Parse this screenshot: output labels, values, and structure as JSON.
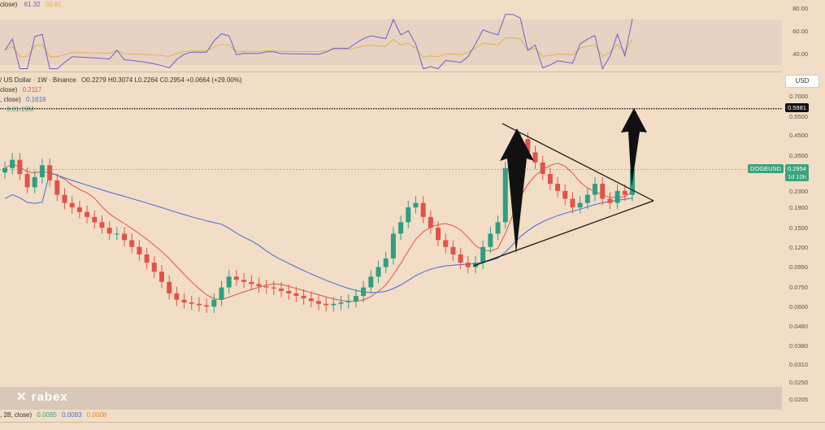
{
  "rsi": {
    "legend_prefix": "close)",
    "value1": "61.32",
    "value2": "50.61",
    "axis": [
      "80.00",
      "60.00",
      "40.00"
    ],
    "color_line": "#6b5fc7",
    "color_ma": "#e3b341"
  },
  "main": {
    "title": "/ US Dollar · 1W · Binance",
    "ohlc": "O0.2279  H0.3074  L0.2264  C0.2954  +0.0664 (+29.00%)",
    "ma1_prefix": "close)",
    "ma1_value": "0.2117",
    "ma2_prefix": ", close)",
    "ma2_value": "0.1619",
    "ma3_value": "3.01.19M",
    "currency_button": "USD",
    "price_axis": [
      "0.7000",
      "0.5981",
      "0.5500",
      "0.4500",
      "0.3500",
      "0.2954",
      "0.2300",
      "0.1900",
      "0.1500",
      "0.1200",
      "0.0950",
      "0.0750",
      "0.0600",
      "0.0480",
      "0.0380",
      "0.0310",
      "0.0250",
      "0.0205"
    ],
    "symbol_tag": "DOGEUSD",
    "price_tag": "0.2954",
    "countdown_tag": "1d 10h",
    "target_tag": "0.5981",
    "colors": {
      "up": "#2f9e82",
      "down": "#e0534a",
      "ma_red": "#e0534a",
      "ma_blue": "#3d6fd6",
      "tag": "#3aa37e"
    }
  },
  "volume": {
    "watermark": "rabex",
    "legend_prefix": ", 28, close)",
    "v1": "0.0085",
    "v2": "0.0093",
    "v3": "0.0008"
  },
  "chart_data": {
    "type": "candlestick",
    "ylabel": "USD",
    "y_scale": "log",
    "ylim": [
      0.0205,
      0.7
    ],
    "candles_close_approx": [
      0.3,
      0.33,
      0.28,
      0.24,
      0.27,
      0.31,
      0.26,
      0.22,
      0.2,
      0.19,
      0.18,
      0.17,
      0.16,
      0.15,
      0.14,
      0.14,
      0.13,
      0.12,
      0.11,
      0.1,
      0.09,
      0.08,
      0.07,
      0.065,
      0.063,
      0.062,
      0.061,
      0.06,
      0.065,
      0.075,
      0.085,
      0.082,
      0.08,
      0.078,
      0.076,
      0.075,
      0.074,
      0.072,
      0.07,
      0.068,
      0.066,
      0.064,
      0.062,
      0.061,
      0.062,
      0.063,
      0.064,
      0.068,
      0.075,
      0.085,
      0.095,
      0.105,
      0.14,
      0.16,
      0.19,
      0.2,
      0.17,
      0.15,
      0.13,
      0.12,
      0.11,
      0.1,
      0.095,
      0.1,
      0.12,
      0.14,
      0.16,
      0.3,
      0.38,
      0.42,
      0.36,
      0.32,
      0.28,
      0.25,
      0.23,
      0.21,
      0.19,
      0.2,
      0.22,
      0.25,
      0.21,
      0.2,
      0.23,
      0.22,
      0.2954
    ],
    "target": 0.5981,
    "triangle": {
      "upper": [
        [
          0.43,
          "start"
        ],
        [
          0.205,
          "apex"
        ]
      ],
      "lower": [
        [
          0.095,
          "start"
        ],
        [
          0.205,
          "apex"
        ]
      ]
    },
    "rsi_range": [
      40,
      80
    ]
  }
}
